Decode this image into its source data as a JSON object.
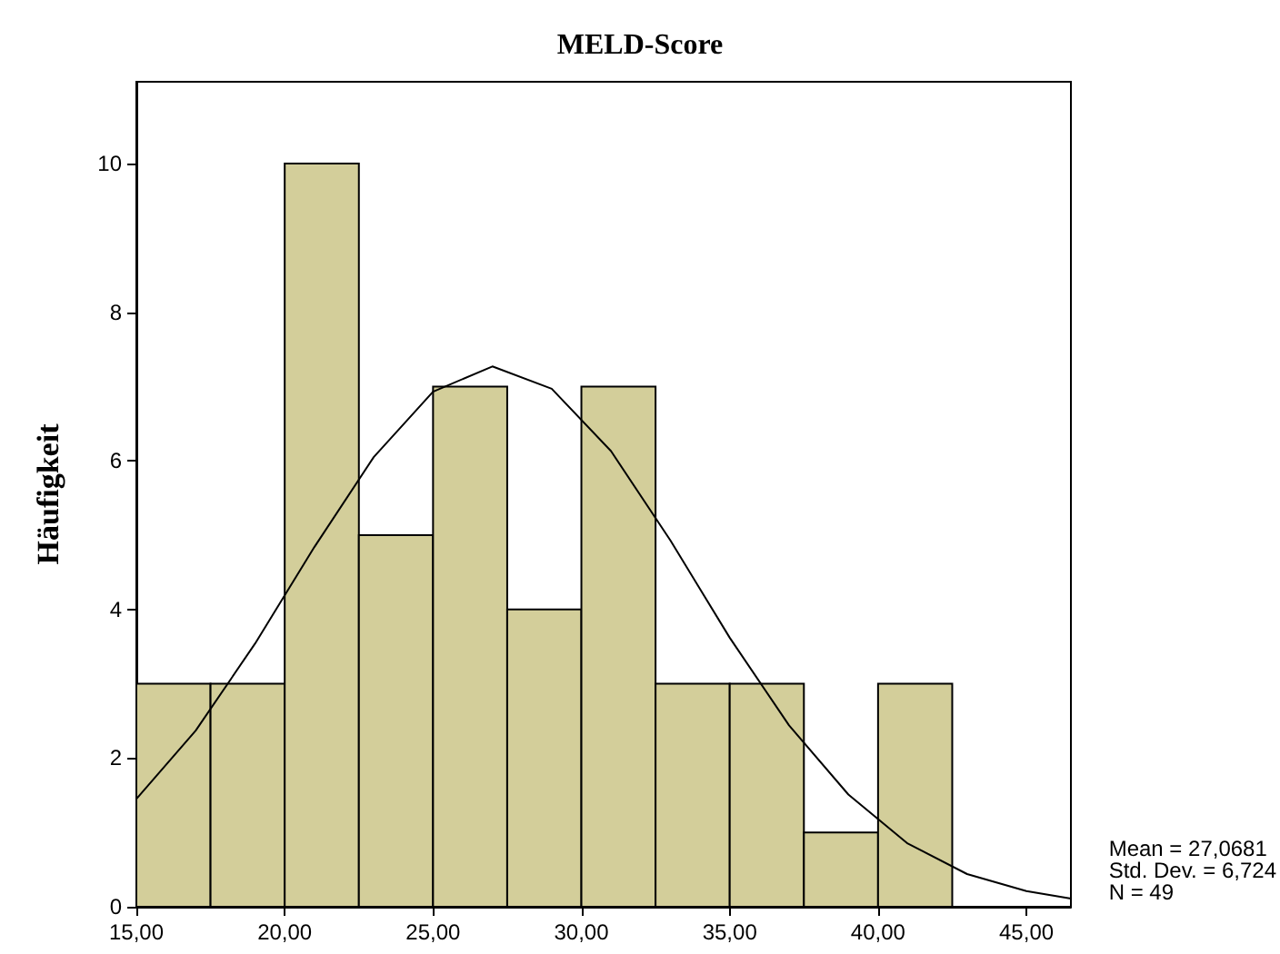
{
  "chart_data": {
    "type": "histogram",
    "title": "MELD-Score",
    "ylabel": "Häufigkeit",
    "bins": [
      15,
      17.5,
      20,
      22.5,
      25,
      27.5,
      30,
      32.5,
      35,
      37.5,
      40,
      42.5
    ],
    "values": [
      3,
      3,
      10,
      5,
      7,
      4,
      7,
      3,
      3,
      1,
      3
    ],
    "color": "#d3ce9a",
    "series": [
      {
        "type": "line",
        "color": "#000000",
        "x": [
          15,
          17,
          19,
          21,
          23,
          25,
          27,
          29,
          31,
          33,
          35,
          37,
          39,
          41,
          43,
          45,
          46.5
        ],
        "values": [
          1.45,
          2.37,
          3.54,
          4.84,
          6.05,
          6.93,
          7.27,
          6.97,
          6.13,
          4.93,
          3.62,
          2.44,
          1.51,
          0.85,
          0.44,
          0.21,
          0.11
        ]
      }
    ],
    "xlim": [
      15,
      46.5
    ],
    "xticks": [
      {
        "value": 15,
        "label": "15,00"
      },
      {
        "value": 20,
        "label": "20,00"
      },
      {
        "value": 25,
        "label": "25,00"
      },
      {
        "value": 30,
        "label": "30,00"
      },
      {
        "value": 35,
        "label": "35,00"
      },
      {
        "value": 40,
        "label": "40,00"
      },
      {
        "value": 45,
        "label": "45,00"
      }
    ],
    "ylim": [
      0,
      11.1
    ],
    "yticks": [
      0,
      2,
      4,
      6,
      8,
      10
    ],
    "grid": false,
    "marker": "none",
    "annotations": [
      "Mean = 27,0681",
      "Std. Dev. = 6,724",
      "N = 49"
    ]
  }
}
